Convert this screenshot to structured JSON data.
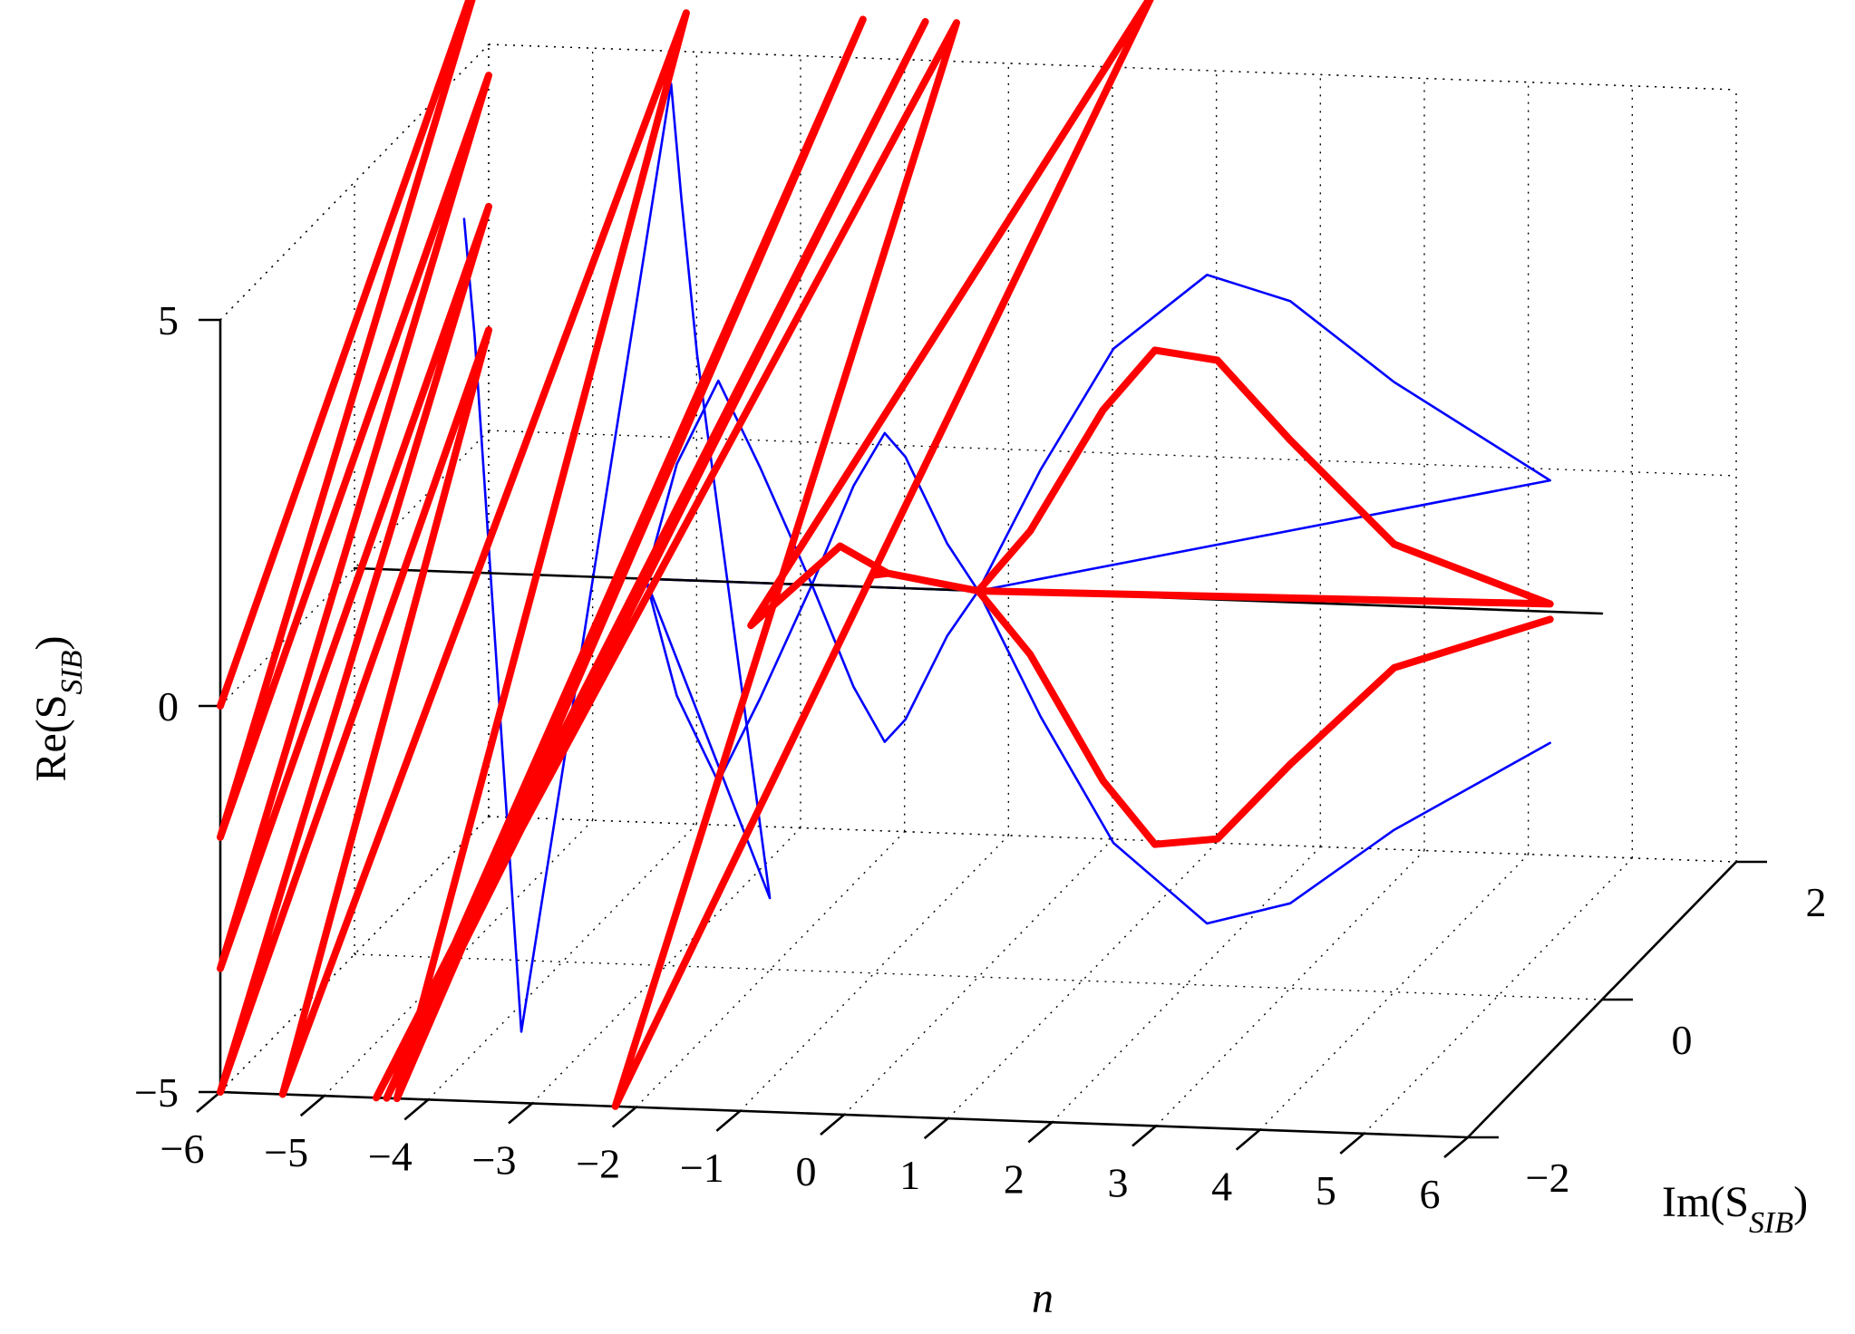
{
  "chart_data": {
    "type": "line",
    "projection": "3d",
    "title": "",
    "axes": {
      "x": {
        "label": "n",
        "ticks": [
          -6,
          -5,
          -4,
          -3,
          -2,
          -1,
          0,
          1,
          2,
          3,
          4,
          5,
          6
        ],
        "range": [
          -6,
          6
        ]
      },
      "y": {
        "label_prefix": "Im(S",
        "label_sub": "SIB",
        "label_suffix": ")",
        "ticks": [
          -2,
          0,
          2
        ],
        "range": [
          -2,
          2
        ]
      },
      "z": {
        "label_prefix": "Re(S",
        "label_sub": "SIB",
        "label_suffix": ")",
        "ticks": [
          -5,
          0,
          5
        ],
        "range": [
          -5,
          5
        ]
      }
    },
    "grid": true,
    "colors": {
      "blue_curve": "#0000ff",
      "red_curve": "#ff0000",
      "axis": "#000000",
      "grid": "#000000"
    },
    "series": [
      {
        "id": "blue",
        "color": "#0000ff",
        "line": "thin",
        "points": [
          [
            -4.3,
            -1,
            5.5
          ],
          [
            -4.2,
            -1,
            4
          ],
          [
            -4.1,
            -1,
            2
          ],
          [
            -4.0,
            -1,
            0
          ],
          [
            -3.9,
            -1,
            -2
          ],
          [
            -3.8,
            -1,
            -4
          ],
          [
            -3.75,
            -1,
            -5
          ],
          [
            -3.6,
            1,
            5.5
          ],
          [
            -3.5,
            1,
            4
          ],
          [
            -3.35,
            1,
            2
          ],
          [
            -3.25,
            1,
            1
          ],
          [
            -3.15,
            1,
            0
          ],
          [
            -3.05,
            1,
            -1
          ],
          [
            -2.95,
            1,
            -2
          ],
          [
            -2.85,
            1,
            -3
          ],
          [
            -2.75,
            1,
            -4
          ],
          [
            -2.65,
            1,
            -5
          ],
          [
            -3.2,
            0,
            0
          ],
          [
            -2.9,
            0,
            -1.5
          ],
          [
            -2.5,
            0,
            -2.6
          ],
          [
            -2.1,
            0,
            -1.5
          ],
          [
            -1.6,
            0,
            0
          ],
          [
            -1.2,
            0,
            1.3
          ],
          [
            -0.9,
            0,
            2
          ],
          [
            -0.7,
            0,
            1.7
          ],
          [
            -0.3,
            0,
            0.6
          ],
          [
            0,
            0,
            0
          ],
          [
            -3.2,
            0,
            0
          ],
          [
            -2.9,
            0,
            1.5
          ],
          [
            -2.5,
            0,
            2.6
          ],
          [
            -2.1,
            0,
            1.5
          ],
          [
            -1.6,
            0,
            0
          ],
          [
            -1.2,
            0,
            -1.3
          ],
          [
            -0.9,
            0,
            -2
          ],
          [
            -0.7,
            0,
            -1.7
          ],
          [
            -0.3,
            0,
            -0.6
          ],
          [
            0,
            0,
            0
          ],
          [
            0,
            0,
            0
          ],
          [
            0.6,
            0,
            1.6
          ],
          [
            1.3,
            0,
            3.2
          ],
          [
            2.2,
            0,
            4.2
          ],
          [
            3.0,
            0,
            3.9
          ],
          [
            4.0,
            0,
            2.9
          ],
          [
            5.5,
            0,
            1.7
          ],
          [
            0,
            0,
            0
          ],
          [
            0.6,
            0,
            -1.6
          ],
          [
            1.3,
            0,
            -3.2
          ],
          [
            2.2,
            0,
            -4.2
          ],
          [
            3.0,
            0,
            -3.9
          ],
          [
            4.0,
            0,
            -2.9
          ],
          [
            5.5,
            0,
            -1.7
          ]
        ]
      },
      {
        "id": "red",
        "color": "#ff0000",
        "line": "thick",
        "points": [
          [
            -6,
            -2,
            0
          ],
          [
            -6,
            2,
            6.3
          ],
          [
            -6,
            -2,
            -1.7
          ],
          [
            -6,
            2,
            4.6
          ],
          [
            -6,
            -2,
            -3.4
          ],
          [
            -6,
            2,
            2.9
          ],
          [
            -6,
            -2,
            -5
          ],
          [
            -6,
            2,
            1.3
          ],
          [
            -5.4,
            -2,
            -5
          ],
          [
            -4.1,
            2,
            5.5
          ],
          [
            -4.3,
            -2,
            -5
          ],
          [
            -2.4,
            2,
            5.5
          ],
          [
            -4.4,
            -2,
            -5
          ],
          [
            -1.8,
            2,
            5.5
          ],
          [
            -4.5,
            -2,
            -5
          ],
          [
            -1.5,
            2,
            5.5
          ],
          [
            -2.2,
            -2,
            -5
          ],
          [
            0.4,
            2,
            6
          ],
          [
            -1.8,
            -0.6,
            0
          ],
          [
            -1.2,
            -0.2,
            0.7
          ],
          [
            -1.0,
            0.2,
            0
          ],
          [
            -1.4,
            0.6,
            -0.4
          ],
          [
            -1.0,
            0.2,
            0
          ],
          [
            0,
            0,
            0
          ],
          [
            0,
            0,
            0
          ],
          [
            0.5,
            0,
            0.8
          ],
          [
            1.2,
            0,
            2.4
          ],
          [
            1.7,
            0,
            3.2
          ],
          [
            2.3,
            0,
            3.1
          ],
          [
            3.0,
            0,
            2.1
          ],
          [
            4.0,
            0,
            0.8
          ],
          [
            5.5,
            0,
            0.1
          ],
          [
            0,
            0,
            0
          ],
          [
            0.5,
            0,
            -0.8
          ],
          [
            1.2,
            0,
            -2.4
          ],
          [
            1.7,
            0,
            -3.2
          ],
          [
            2.3,
            0,
            -3.1
          ],
          [
            3.0,
            0,
            -2.1
          ],
          [
            4.0,
            0,
            -0.8
          ],
          [
            5.5,
            0,
            -0.1
          ]
        ]
      },
      {
        "id": "black",
        "color": "#000000",
        "line": "thin",
        "points": [
          [
            -6,
            0,
            0
          ],
          [
            6,
            0,
            0
          ]
        ]
      }
    ]
  }
}
